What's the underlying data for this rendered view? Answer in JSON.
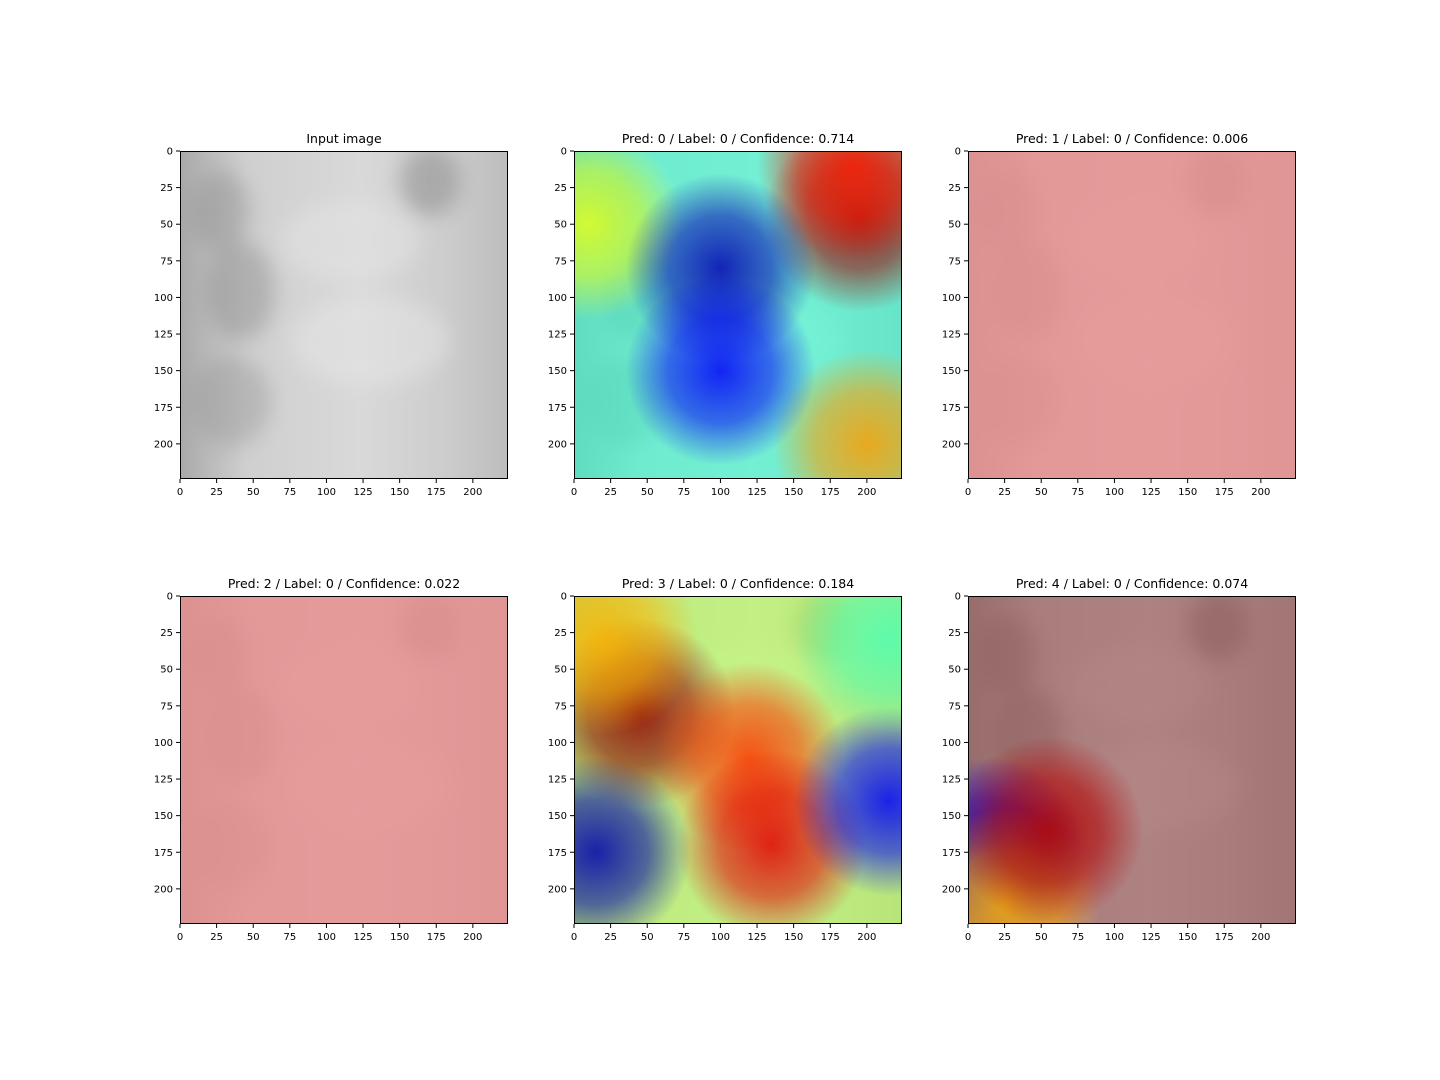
{
  "figure": {
    "panels": [
      {
        "title": "Input image",
        "overlay": "none",
        "image_kind": "xray"
      },
      {
        "title": "Pred: 0 / Label: 0 / Confidence: 0.714",
        "overlay": "jet-heatmap",
        "image_kind": "xray"
      },
      {
        "title": "Pred: 1 / Label: 0 / Confidence: 0.006",
        "overlay": "uniform-red",
        "image_kind": "xray"
      },
      {
        "title": "Pred: 2 / Label: 0 / Confidence: 0.022",
        "overlay": "uniform-red",
        "image_kind": "xray"
      },
      {
        "title": "Pred: 3 / Label: 0 / Confidence: 0.184",
        "overlay": "jet-heatmap",
        "image_kind": "xray"
      },
      {
        "title": "Pred: 4 / Label: 0 / Confidence: 0.074",
        "overlay": "jet-heatmap",
        "image_kind": "xray"
      }
    ]
  },
  "chart_data": [
    {
      "type": "heatmap",
      "title": "Input image",
      "xlim": [
        0,
        224
      ],
      "ylim": [
        224,
        0
      ],
      "xticks": [
        0,
        25,
        50,
        75,
        100,
        125,
        150,
        175,
        200
      ],
      "yticks": [
        0,
        25,
        50,
        75,
        100,
        125,
        150,
        175,
        200
      ],
      "colormap": "gray"
    },
    {
      "type": "heatmap",
      "title": "Pred: 0 / Label: 0 / Confidence: 0.714",
      "prediction": 0,
      "label": 0,
      "confidence": 0.714,
      "xlim": [
        0,
        224
      ],
      "ylim": [
        224,
        0
      ],
      "xticks": [
        0,
        25,
        50,
        75,
        100,
        125,
        150,
        175,
        200
      ],
      "yticks": [
        0,
        25,
        50,
        75,
        100,
        125,
        150,
        175,
        200
      ],
      "colormap": "jet",
      "hotspots": [
        {
          "x": 195,
          "y": 45,
          "level": 0.97
        },
        {
          "x": 190,
          "y": 10,
          "level": 0.85
        },
        {
          "x": 200,
          "y": 200,
          "level": 0.72
        },
        {
          "x": 10,
          "y": 50,
          "level": 0.6
        },
        {
          "x": 100,
          "y": 80,
          "level": 0.05
        },
        {
          "x": 100,
          "y": 150,
          "level": 0.12
        }
      ]
    },
    {
      "type": "heatmap",
      "title": "Pred: 1 / Label: 0 / Confidence: 0.006",
      "prediction": 1,
      "label": 0,
      "confidence": 0.006,
      "xlim": [
        0,
        224
      ],
      "ylim": [
        224,
        0
      ],
      "xticks": [
        0,
        25,
        50,
        75,
        100,
        125,
        150,
        175,
        200
      ],
      "yticks": [
        0,
        25,
        50,
        75,
        100,
        125,
        150,
        175,
        200
      ],
      "colormap": "jet",
      "uniform_color": "#e88c8c"
    },
    {
      "type": "heatmap",
      "title": "Pred: 2 / Label: 0 / Confidence: 0.022",
      "prediction": 2,
      "label": 0,
      "confidence": 0.022,
      "xlim": [
        0,
        224
      ],
      "ylim": [
        224,
        0
      ],
      "xticks": [
        0,
        25,
        50,
        75,
        100,
        125,
        150,
        175,
        200
      ],
      "yticks": [
        0,
        25,
        50,
        75,
        100,
        125,
        150,
        175,
        200
      ],
      "colormap": "jet",
      "uniform_color": "#e88c8c"
    },
    {
      "type": "heatmap",
      "title": "Pred: 3 / Label: 0 / Confidence: 0.184",
      "prediction": 3,
      "label": 0,
      "confidence": 0.184,
      "xlim": [
        0,
        224
      ],
      "ylim": [
        224,
        0
      ],
      "xticks": [
        0,
        25,
        50,
        75,
        100,
        125,
        150,
        175,
        200
      ],
      "yticks": [
        0,
        25,
        50,
        75,
        100,
        125,
        150,
        175,
        200
      ],
      "colormap": "jet",
      "hotspots": [
        {
          "x": 45,
          "y": 80,
          "level": 0.98
        },
        {
          "x": 120,
          "y": 110,
          "level": 0.82
        },
        {
          "x": 135,
          "y": 170,
          "level": 0.9
        },
        {
          "x": 20,
          "y": 30,
          "level": 0.7
        },
        {
          "x": 15,
          "y": 175,
          "level": 0.05
        },
        {
          "x": 215,
          "y": 140,
          "level": 0.12
        },
        {
          "x": 215,
          "y": 30,
          "level": 0.45
        }
      ]
    },
    {
      "type": "heatmap",
      "title": "Pred: 4 / Label: 0 / Confidence: 0.074",
      "prediction": 4,
      "label": 0,
      "confidence": 0.074,
      "xlim": [
        0,
        224
      ],
      "ylim": [
        224,
        0
      ],
      "xticks": [
        0,
        25,
        50,
        75,
        100,
        125,
        150,
        175,
        200
      ],
      "yticks": [
        0,
        25,
        50,
        75,
        100,
        125,
        150,
        175,
        200
      ],
      "colormap": "jet",
      "hotspots": [
        {
          "x": 15,
          "y": 175,
          "level": 0.1
        },
        {
          "x": 25,
          "y": 210,
          "level": 0.7
        },
        {
          "x": 55,
          "y": 160,
          "level": 0.95
        }
      ]
    }
  ]
}
